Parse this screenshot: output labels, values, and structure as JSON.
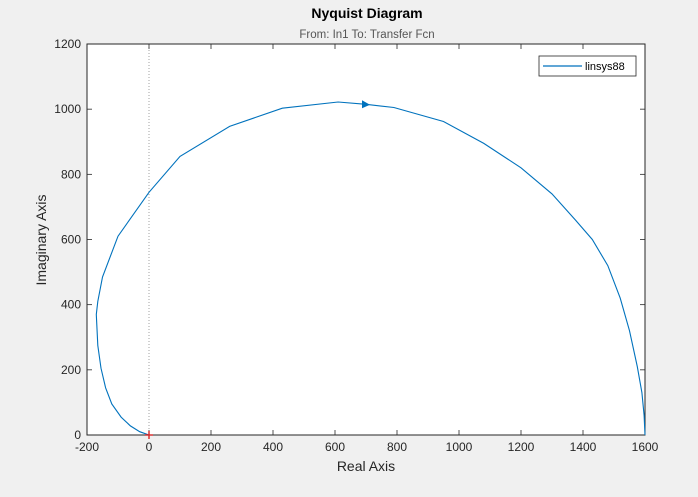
{
  "window": {
    "background": "#f0f0f0"
  },
  "chart_data": {
    "type": "line",
    "title": "Nyquist Diagram",
    "subtitle": "From: In1  To: Transfer Fcn",
    "xlabel": "Real Axis",
    "ylabel": "Imaginary Axis",
    "xlim": [
      -200,
      1600
    ],
    "ylim": [
      0,
      1200
    ],
    "xticks": [
      -200,
      0,
      200,
      400,
      600,
      800,
      1000,
      1200,
      1400,
      1600
    ],
    "yticks": [
      0,
      200,
      400,
      600,
      800,
      1000,
      1200
    ],
    "grid": false,
    "legend": {
      "location": "top-right",
      "entries": [
        "linsys88"
      ]
    },
    "colors": {
      "line": "#0072bd",
      "critical_point": "#d62728",
      "axes": "#262626",
      "zero_axis": "#a0a0a0"
    },
    "critical_point": {
      "x": 0,
      "y": 0,
      "marker": "+"
    },
    "series": [
      {
        "name": "linsys88",
        "x": [
          1600,
          1597,
          1590,
          1575,
          1550,
          1520,
          1480,
          1430,
          1375,
          1300,
          1200,
          1080,
          950,
          790,
          700,
          610,
          430,
          260,
          100,
          0,
          -100,
          -150,
          -165,
          -170,
          -165,
          -155,
          -140,
          -120,
          -90,
          -60,
          -30,
          0
        ],
        "y": [
          0,
          60,
          130,
          210,
          320,
          420,
          520,
          600,
          660,
          740,
          820,
          895,
          962,
          1005,
          1015,
          1022,
          1003,
          947,
          855,
          745,
          610,
          485,
          410,
          370,
          275,
          205,
          145,
          95,
          55,
          28,
          10,
          0
        ]
      }
    ],
    "arrow": {
      "x": 700,
      "y": 1015
    }
  }
}
